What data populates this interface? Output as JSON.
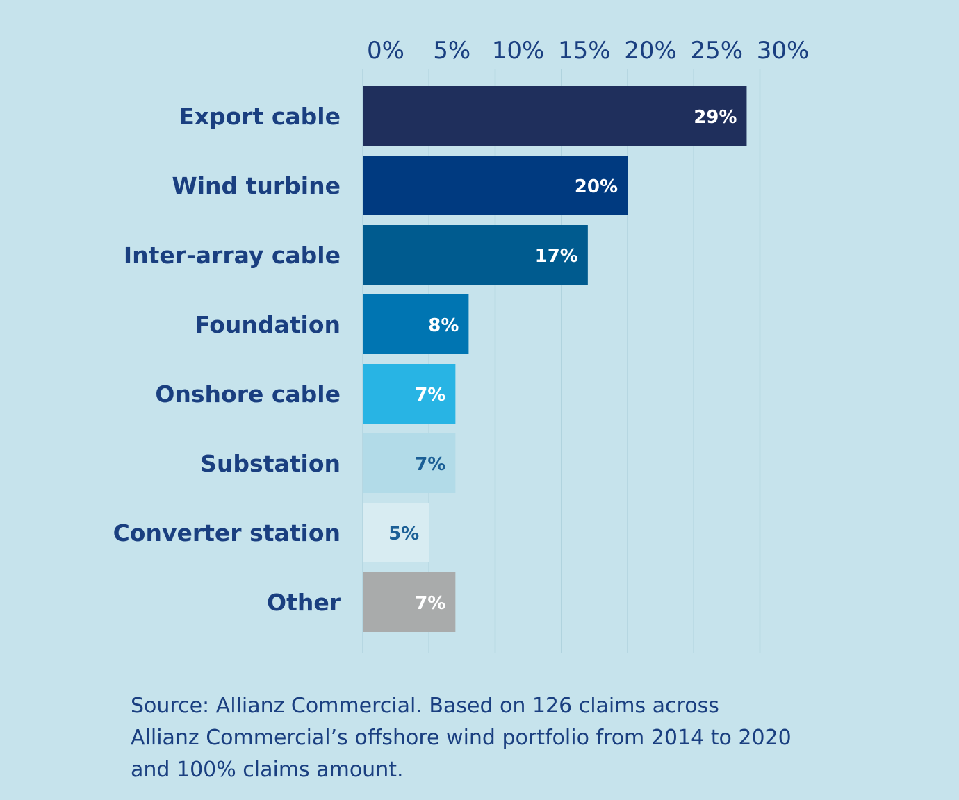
{
  "chart_data": {
    "type": "bar",
    "orientation": "horizontal",
    "categories": [
      "Export cable",
      "Wind turbine",
      "Inter-array cable",
      "Foundation",
      "Onshore cable",
      "Substation",
      "Converter station",
      "Other"
    ],
    "values": [
      29,
      20,
      17,
      8,
      7,
      7,
      5,
      7
    ],
    "data_labels": [
      "29%",
      "20%",
      "17%",
      "8%",
      "7%",
      "7%",
      "5%",
      "7%"
    ],
    "bar_colors": [
      "#1f2f5c",
      "#003a80",
      "#005b8f",
      "#0075b2",
      "#28b4e4",
      "#b2dbe8",
      "#d8ecf2",
      "#a9abab"
    ],
    "data_label_colors": [
      "#ffffff",
      "#ffffff",
      "#ffffff",
      "#ffffff",
      "#ffffff",
      "#1b5f96",
      "#1b5f96",
      "#ffffff"
    ],
    "x_ticks": [
      0,
      5,
      10,
      15,
      20,
      25,
      30
    ],
    "x_tick_labels": [
      "0%",
      "5%",
      "10%",
      "15%",
      "20%",
      "25%",
      "30%"
    ],
    "xlim": [
      0,
      30
    ],
    "x_axis_position": "top",
    "grid": true,
    "legend": "none",
    "title": "",
    "xlabel": "",
    "ylabel": ""
  },
  "source_lines": [
    "Source: Allianz Commercial. Based on 126 claims across",
    "Allianz Commercial’s offshore wind portfolio from 2014 to 2020",
    "and 100% claims amount."
  ],
  "colors": {
    "background": "#c6e3ec",
    "text": "#1a3f80",
    "gridline": "#b0d3de"
  }
}
